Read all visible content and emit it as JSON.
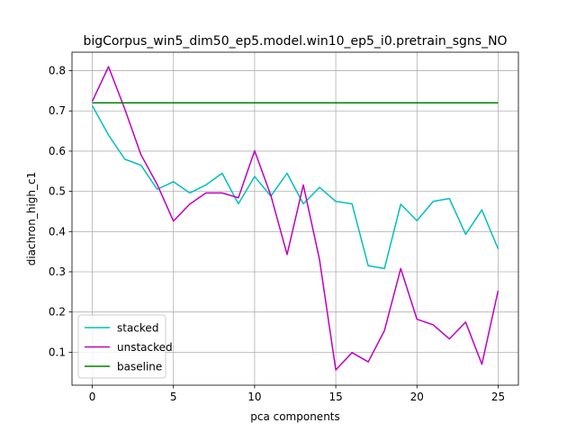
{
  "chart_data": {
    "type": "line",
    "title": "bigCorpus_win5_dim50_ep5.model.win10_ep5_i0.pretrain_sgns_NO",
    "xlabel": "pca components",
    "ylabel": "diachron_high_c1",
    "xlim": [
      -1.25,
      26.25
    ],
    "ylim": [
      0.018,
      0.846
    ],
    "xticks": [
      0,
      5,
      10,
      15,
      20,
      25
    ],
    "yticks": [
      0.1,
      0.2,
      0.3,
      0.4,
      0.5,
      0.6,
      0.7,
      0.8
    ],
    "grid": true,
    "legend_position": "lower-left",
    "x": [
      0,
      1,
      2,
      3,
      4,
      5,
      6,
      7,
      8,
      9,
      10,
      11,
      12,
      13,
      14,
      15,
      16,
      17,
      18,
      19,
      20,
      21,
      22,
      23,
      24,
      25
    ],
    "series": [
      {
        "name": "stacked",
        "color": "#00bfbf",
        "values": [
          0.713,
          0.64,
          0.58,
          0.565,
          0.505,
          0.524,
          0.496,
          0.516,
          0.545,
          0.469,
          0.537,
          0.488,
          0.545,
          0.469,
          0.51,
          0.475,
          0.469,
          0.315,
          0.308,
          0.468,
          0.427,
          0.475,
          0.482,
          0.393,
          0.454,
          0.357
        ]
      },
      {
        "name": "unstacked",
        "color": "#bf00bf",
        "values": [
          0.724,
          0.81,
          0.705,
          0.591,
          0.517,
          0.426,
          0.468,
          0.496,
          0.496,
          0.484,
          0.601,
          0.49,
          0.343,
          0.516,
          0.33,
          0.056,
          0.099,
          0.076,
          0.154,
          0.308,
          0.182,
          0.168,
          0.133,
          0.175,
          0.07,
          0.253
        ]
      },
      {
        "name": "baseline",
        "color": "#008000",
        "values": [
          0.72,
          0.72,
          0.72,
          0.72,
          0.72,
          0.72,
          0.72,
          0.72,
          0.72,
          0.72,
          0.72,
          0.72,
          0.72,
          0.72,
          0.72,
          0.72,
          0.72,
          0.72,
          0.72,
          0.72,
          0.72,
          0.72,
          0.72,
          0.72,
          0.72,
          0.72
        ]
      }
    ]
  }
}
